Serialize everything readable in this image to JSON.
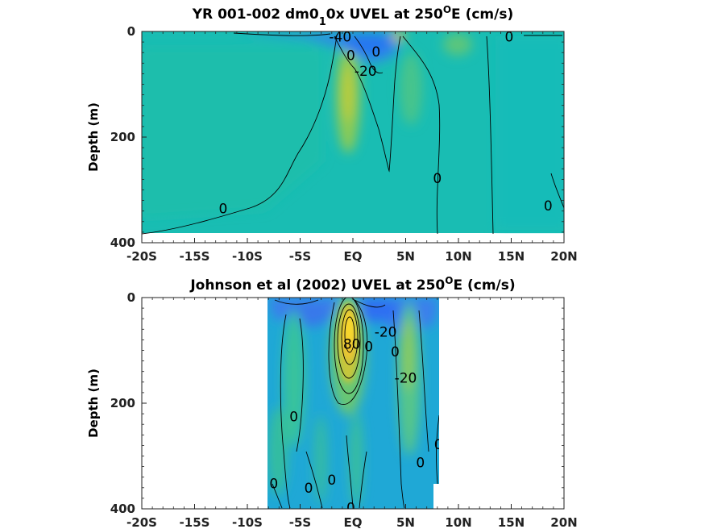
{
  "chart_data": [
    {
      "type": "heatmap",
      "title": "YR 001-002 dm0_1_0x UVEL at 250°E (cm/s)",
      "title_parts": [
        "YR 001-002 dm0",
        "1",
        "0x UVEL at 250",
        "O",
        "E (cm/s)"
      ],
      "xlabel": "",
      "ylabel": "Depth (m)",
      "x_ticks": [
        "-20S",
        "-15S",
        "-10S",
        "-5S",
        "EQ",
        "5N",
        "10N",
        "15N",
        "20N"
      ],
      "x_tick_values": [
        -20,
        -15,
        -10,
        -5,
        0,
        5,
        10,
        15,
        20
      ],
      "y_ticks": [
        "0",
        "200",
        "400"
      ],
      "y_tick_values": [
        0,
        200,
        400
      ],
      "xlim": [
        -20,
        20
      ],
      "ylim": [
        400,
        0
      ],
      "data_extent": {
        "lat": [
          -20,
          20
        ],
        "depth": [
          0,
          385
        ]
      },
      "contour_labels": [
        {
          "text": "-40",
          "lat": -1.2,
          "depth": 10
        },
        {
          "text": "0",
          "lat": -0.2,
          "depth": 45
        },
        {
          "text": "-20",
          "lat": 1.2,
          "depth": 75
        },
        {
          "text": "0",
          "lat": 2.2,
          "depth": 38
        },
        {
          "text": "0",
          "lat": 14.8,
          "depth": 10
        },
        {
          "text": "0",
          "lat": 8.0,
          "depth": 278
        },
        {
          "text": "0",
          "lat": -12.3,
          "depth": 335
        },
        {
          "text": "0",
          "lat": 18.5,
          "depth": 330
        }
      ],
      "colormap": "parula"
    },
    {
      "type": "heatmap",
      "title": "Johnson et al (2002) UVEL at 250°E (cm/s)",
      "title_parts": [
        "Johnson et al (2002) UVEL at 250",
        "O",
        "E (cm/s)"
      ],
      "xlabel": "",
      "ylabel": "Depth (m)",
      "x_ticks": [
        "-20S",
        "-15S",
        "-10S",
        "-5S",
        "EQ",
        "5N",
        "10N",
        "15N",
        "20N"
      ],
      "x_tick_values": [
        -20,
        -15,
        -10,
        -5,
        0,
        5,
        10,
        15,
        20
      ],
      "y_ticks": [
        "0",
        "200",
        "400"
      ],
      "y_tick_values": [
        0,
        200,
        400
      ],
      "xlim": [
        -20,
        20
      ],
      "ylim": [
        400,
        0
      ],
      "data_extent": {
        "lat": [
          -8,
          8.3
        ],
        "depth": [
          0,
          400
        ]
      },
      "contour_labels": [
        {
          "text": "80",
          "lat": -0.1,
          "depth": 88
        },
        {
          "text": "-20",
          "lat": 3.1,
          "depth": 65
        },
        {
          "text": "0",
          "lat": 1.5,
          "depth": 92
        },
        {
          "text": "0",
          "lat": 4.0,
          "depth": 102
        },
        {
          "text": "-20",
          "lat": 5.0,
          "depth": 152
        },
        {
          "text": "0",
          "lat": -5.6,
          "depth": 225
        },
        {
          "text": "0",
          "lat": 8.1,
          "depth": 278
        },
        {
          "text": "0",
          "lat": 6.4,
          "depth": 312
        },
        {
          "text": "0",
          "lat": -7.5,
          "depth": 352
        },
        {
          "text": "0",
          "lat": -4.2,
          "depth": 360
        },
        {
          "text": "0",
          "lat": -2.0,
          "depth": 345
        },
        {
          "text": "0",
          "lat": -0.2,
          "depth": 398
        }
      ],
      "colormap": "parula"
    }
  ]
}
